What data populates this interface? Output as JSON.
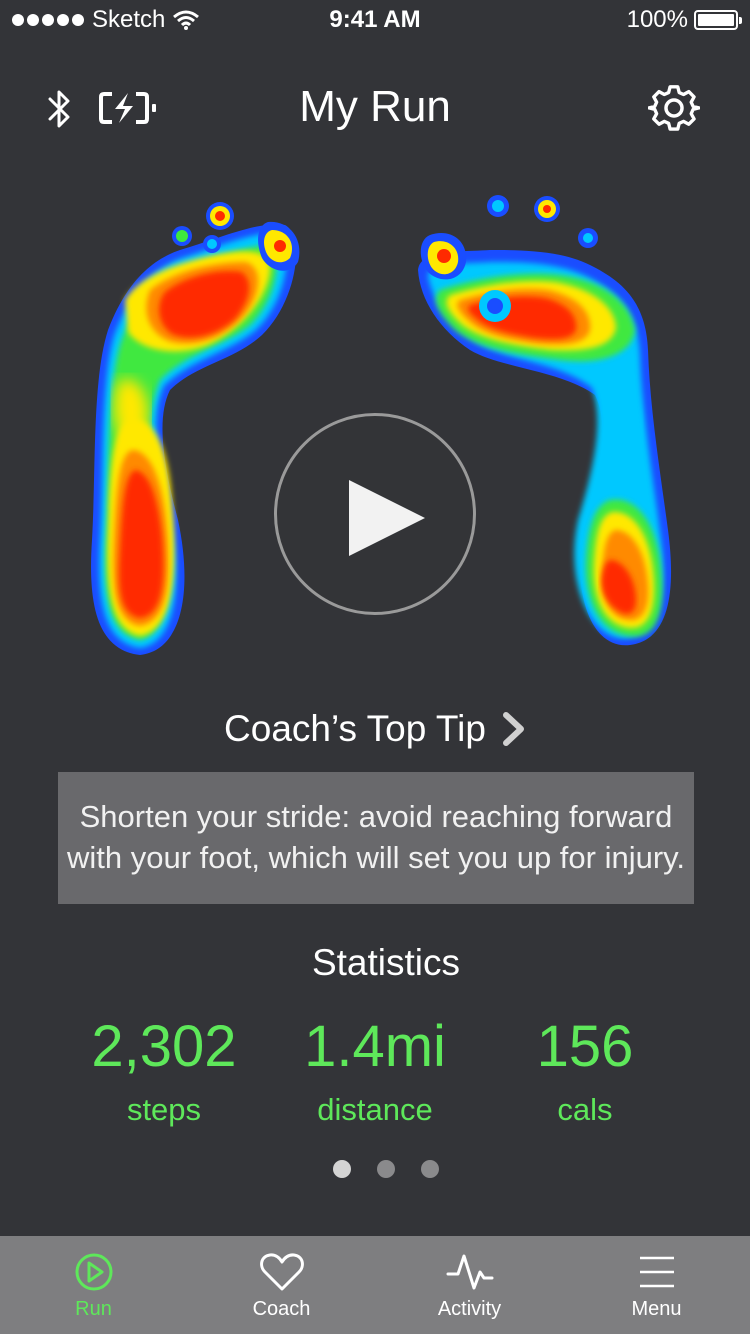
{
  "status_bar": {
    "carrier": "Sketch",
    "time": "9:41 AM",
    "battery": "100%"
  },
  "header": {
    "title": "My Run",
    "icons": [
      "bluetooth-icon",
      "battery-charging-icon",
      "gear-icon"
    ]
  },
  "pressure_map": {
    "play_icon": "play-icon"
  },
  "tip": {
    "heading": "Coach’s Top Tip",
    "text": "Shorten your stride: avoid reaching forward with your foot, which will set you up for injury."
  },
  "statistics": {
    "title": "Statistics",
    "items": [
      {
        "value": "2,302",
        "label": "steps"
      },
      {
        "value": "1.4mi",
        "label": "distance"
      },
      {
        "value": "156",
        "label": "cals"
      }
    ],
    "page_count": 3,
    "active_page": 1
  },
  "tab_bar": {
    "tabs": [
      {
        "label": "Run",
        "icon": "play-circle-icon",
        "active": true
      },
      {
        "label": "Coach",
        "icon": "heart-icon",
        "active": false
      },
      {
        "label": "Activity",
        "icon": "activity-pulse-icon",
        "active": false
      },
      {
        "label": "Menu",
        "icon": "hamburger-menu-icon",
        "active": false
      }
    ]
  },
  "colors": {
    "background": "#333438",
    "accent_green": "#5ee85a",
    "tip_box": "#69696c",
    "tab_bar": "#7e7e80"
  }
}
